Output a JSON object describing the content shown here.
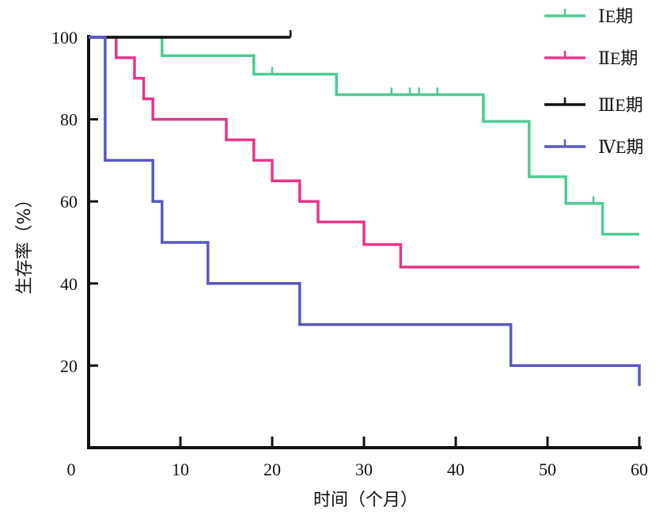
{
  "chart_data": {
    "type": "line",
    "subtype": "kaplan-meier step",
    "xlabel": "时间（个月）",
    "ylabel": "生存率（%）",
    "xlim": [
      0,
      60
    ],
    "ylim": [
      0,
      100
    ],
    "xticks": [
      "0",
      "10",
      "20",
      "30",
      "40",
      "50",
      "60"
    ],
    "yticks": [
      "20",
      "40",
      "60",
      "80",
      "100"
    ],
    "grid": false,
    "legend_position": "top-right",
    "series": [
      {
        "name": "ⅠE期",
        "color": "#4dcc92",
        "steps": [
          [
            0,
            100
          ],
          [
            8,
            95.5
          ],
          [
            18,
            91
          ],
          [
            27,
            86
          ],
          [
            43,
            79.5
          ],
          [
            48,
            66
          ],
          [
            52,
            59.5
          ],
          [
            56,
            52
          ],
          [
            60,
            52
          ]
        ],
        "censored": [
          [
            20,
            91
          ],
          [
            33,
            86
          ],
          [
            35,
            86
          ],
          [
            36,
            86
          ],
          [
            38,
            86
          ],
          [
            55,
            59.5
          ]
        ]
      },
      {
        "name": "ⅡE期",
        "color": "#e8358a",
        "steps": [
          [
            0,
            100
          ],
          [
            3,
            95
          ],
          [
            5,
            90
          ],
          [
            6,
            85
          ],
          [
            7,
            80
          ],
          [
            15,
            75
          ],
          [
            18,
            70
          ],
          [
            20,
            65
          ],
          [
            23,
            60
          ],
          [
            25,
            55
          ],
          [
            30,
            49.5
          ],
          [
            34,
            44
          ],
          [
            60,
            44
          ]
        ],
        "censored": []
      },
      {
        "name": "ⅢE期",
        "color": "#111111",
        "steps": [
          [
            0,
            100
          ],
          [
            22,
            100
          ]
        ],
        "censored": [
          [
            22,
            100
          ]
        ]
      },
      {
        "name": "ⅣE期",
        "color": "#5858c4",
        "steps": [
          [
            0,
            100
          ],
          [
            1.8,
            70
          ],
          [
            7,
            60
          ],
          [
            8,
            50
          ],
          [
            13,
            40
          ],
          [
            23,
            30
          ],
          [
            46,
            20
          ],
          [
            60,
            15
          ]
        ],
        "censored": []
      }
    ]
  }
}
